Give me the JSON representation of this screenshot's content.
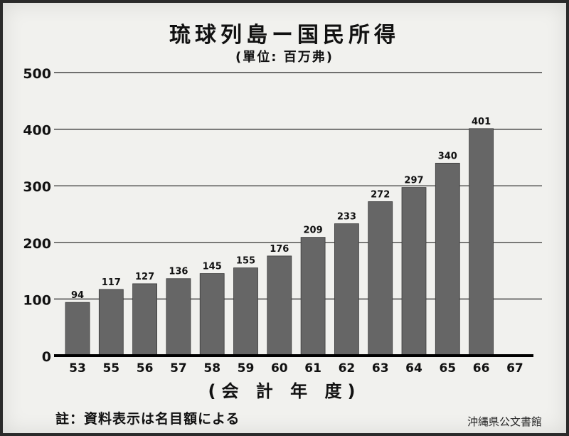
{
  "chart_data": {
    "type": "bar",
    "title": "琉球列島ー国民所得",
    "subtitle": "(單位: 百万弗)",
    "xlabel": "(会 計 年 度)",
    "ylabel": "",
    "categories": [
      "53",
      "55",
      "56",
      "57",
      "58",
      "59",
      "60",
      "61",
      "62",
      "63",
      "64",
      "65",
      "66",
      "67"
    ],
    "values": [
      94,
      117,
      127,
      136,
      145,
      155,
      176,
      209,
      233,
      272,
      297,
      340,
      401,
      null
    ],
    "ylim": [
      0,
      500
    ],
    "yticks": [
      "0",
      "100",
      "200",
      "300",
      "400",
      "500"
    ],
    "grid": true,
    "bar_color": "#666666"
  },
  "note": "註：資料表示は名目額による",
  "credit": "沖縄県公文書館"
}
